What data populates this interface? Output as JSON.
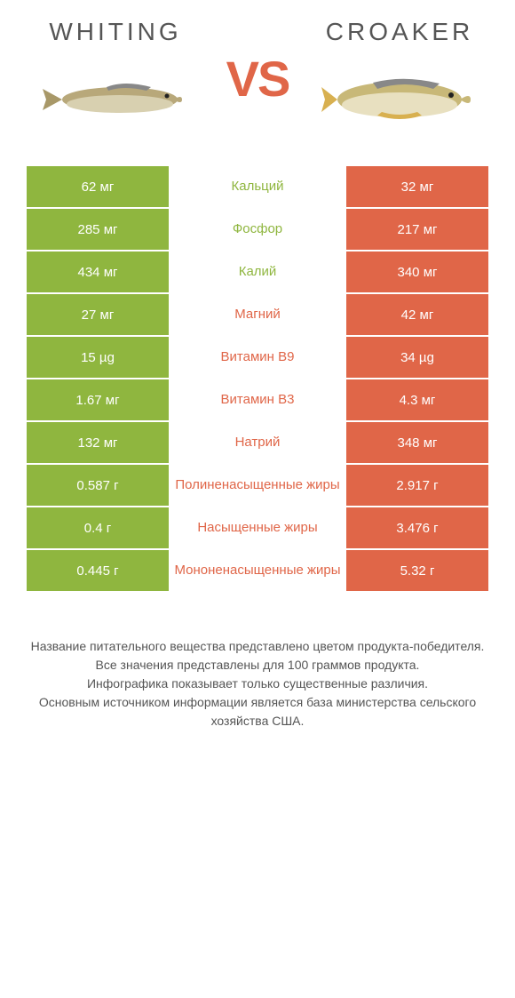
{
  "colors": {
    "left": "#8fb63f",
    "right": "#e06648",
    "vs": "#e06648",
    "title": "#555555",
    "footer": "#555555"
  },
  "header": {
    "left_title": "WHITING",
    "right_title": "CROAKER",
    "vs": "VS"
  },
  "rows": [
    {
      "left": "62 мг",
      "label": "Кальций",
      "right": "32 мг",
      "winner": "left"
    },
    {
      "left": "285 мг",
      "label": "Фосфор",
      "right": "217 мг",
      "winner": "left"
    },
    {
      "left": "434 мг",
      "label": "Калий",
      "right": "340 мг",
      "winner": "left"
    },
    {
      "left": "27 мг",
      "label": "Магний",
      "right": "42 мг",
      "winner": "right"
    },
    {
      "left": "15 µg",
      "label": "Витамин B9",
      "right": "34 µg",
      "winner": "right"
    },
    {
      "left": "1.67 мг",
      "label": "Витамин B3",
      "right": "4.3 мг",
      "winner": "right"
    },
    {
      "left": "132 мг",
      "label": "Натрий",
      "right": "348 мг",
      "winner": "right"
    },
    {
      "left": "0.587 г",
      "label": "Полиненасыщенные жиры",
      "right": "2.917 г",
      "winner": "right"
    },
    {
      "left": "0.4 г",
      "label": "Насыщенные жиры",
      "right": "3.476 г",
      "winner": "right"
    },
    {
      "left": "0.445 г",
      "label": "Мононенасыщенные жиры",
      "right": "5.32 г",
      "winner": "right"
    }
  ],
  "footer": {
    "line1": "Название питательного вещества представлено цветом продукта-победителя.",
    "line2": "Все значения представлены для 100 граммов продукта.",
    "line3": "Инфографика показывает только существенные различия.",
    "line4": "Основным источником информации является база министерства сельского хозяйства США."
  }
}
